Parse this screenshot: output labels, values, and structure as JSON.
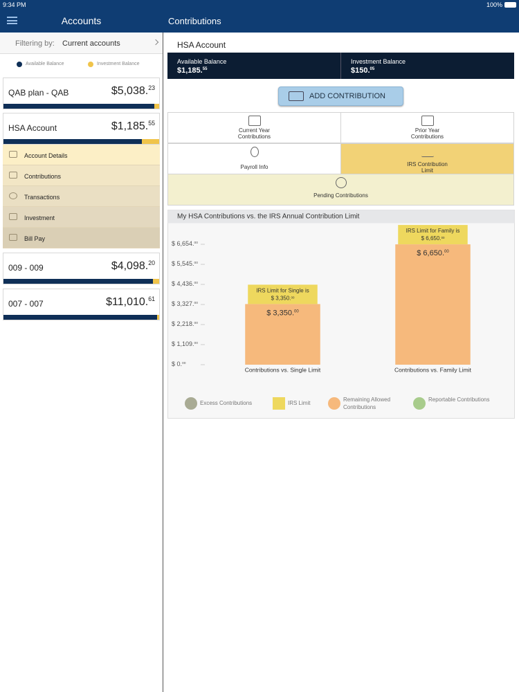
{
  "status_bar": {
    "time": "9:34 PM",
    "battery": "100%"
  },
  "sidebar": {
    "title": "Accounts",
    "filter_label": "Filtering by:",
    "filter_value": "Current accounts",
    "legend": [
      "Available Balance",
      "Investment Balance"
    ],
    "accounts": [
      {
        "name": "QAB plan - QAB",
        "balance": "$5,038.23"
      },
      {
        "name": "HSA Account",
        "balance": "$1,185.55",
        "menu": [
          "Account Details",
          "Contributions",
          "Transactions",
          "Investment",
          "Bill Pay"
        ]
      },
      {
        "name": "009 - 009",
        "balance": "$4,098.20"
      },
      {
        "name": "007 - 007",
        "balance": "$11,010.61"
      }
    ]
  },
  "main": {
    "title": "Contributions",
    "account": "HSA Account",
    "balances": [
      {
        "label": "Available Balance",
        "amount": "$1,185.55"
      },
      {
        "label": "Investment Balance",
        "amount": "$150.05"
      }
    ],
    "button": "ADD CONTRIBUTION",
    "tiles": [
      "Current Year Contributions",
      "Prior Year Contributions",
      "Payroll Info",
      "IRS Contribution Limit",
      "Pending Contributions"
    ]
  },
  "chart_data": {
    "type": "bar",
    "title": "My HSA Contributions vs. the IRS Annual Contribution Limit",
    "categories": [
      "Contributions vs. Single Limit",
      "Contributions vs. Family Limit"
    ],
    "series": [
      {
        "name": "Excess Contributions",
        "color": "#a9ab94",
        "legend_marker": "circle",
        "values": [
          0,
          0
        ]
      },
      {
        "name": "IRS Limit",
        "color": "#eed85e",
        "legend_marker": "square",
        "values": [
          3350,
          6650
        ],
        "value_labels": [
          "IRS Limit for Single is $ 3,350.00",
          "IRS Limit for Family is $ 6,650.00"
        ]
      },
      {
        "name": "Remaining Allowed Contributions",
        "color": "#f6b97c",
        "legend_marker": "circle",
        "values": [
          3350,
          6650
        ],
        "value_labels": [
          "$ 3,350.00",
          "$ 6,650.00"
        ]
      },
      {
        "name": "Reportable Contributions",
        "color": "#a8cc8c",
        "legend_marker": "circle",
        "values": [
          0,
          0
        ]
      }
    ],
    "ylim": [
      0,
      7763
    ],
    "yticks": [
      {
        "value": 0,
        "label": "$ 0.00"
      },
      {
        "value": 1109,
        "label": "$ 1,109.00"
      },
      {
        "value": 2218,
        "label": "$ 2,218.00"
      },
      {
        "value": 3327,
        "label": "$ 3,327.00"
      },
      {
        "value": 4436,
        "label": "$ 4,436.00"
      },
      {
        "value": 5545,
        "label": "$ 5,545.00"
      },
      {
        "value": 6654,
        "label": "$ 6,654.00"
      }
    ],
    "grid": false
  }
}
